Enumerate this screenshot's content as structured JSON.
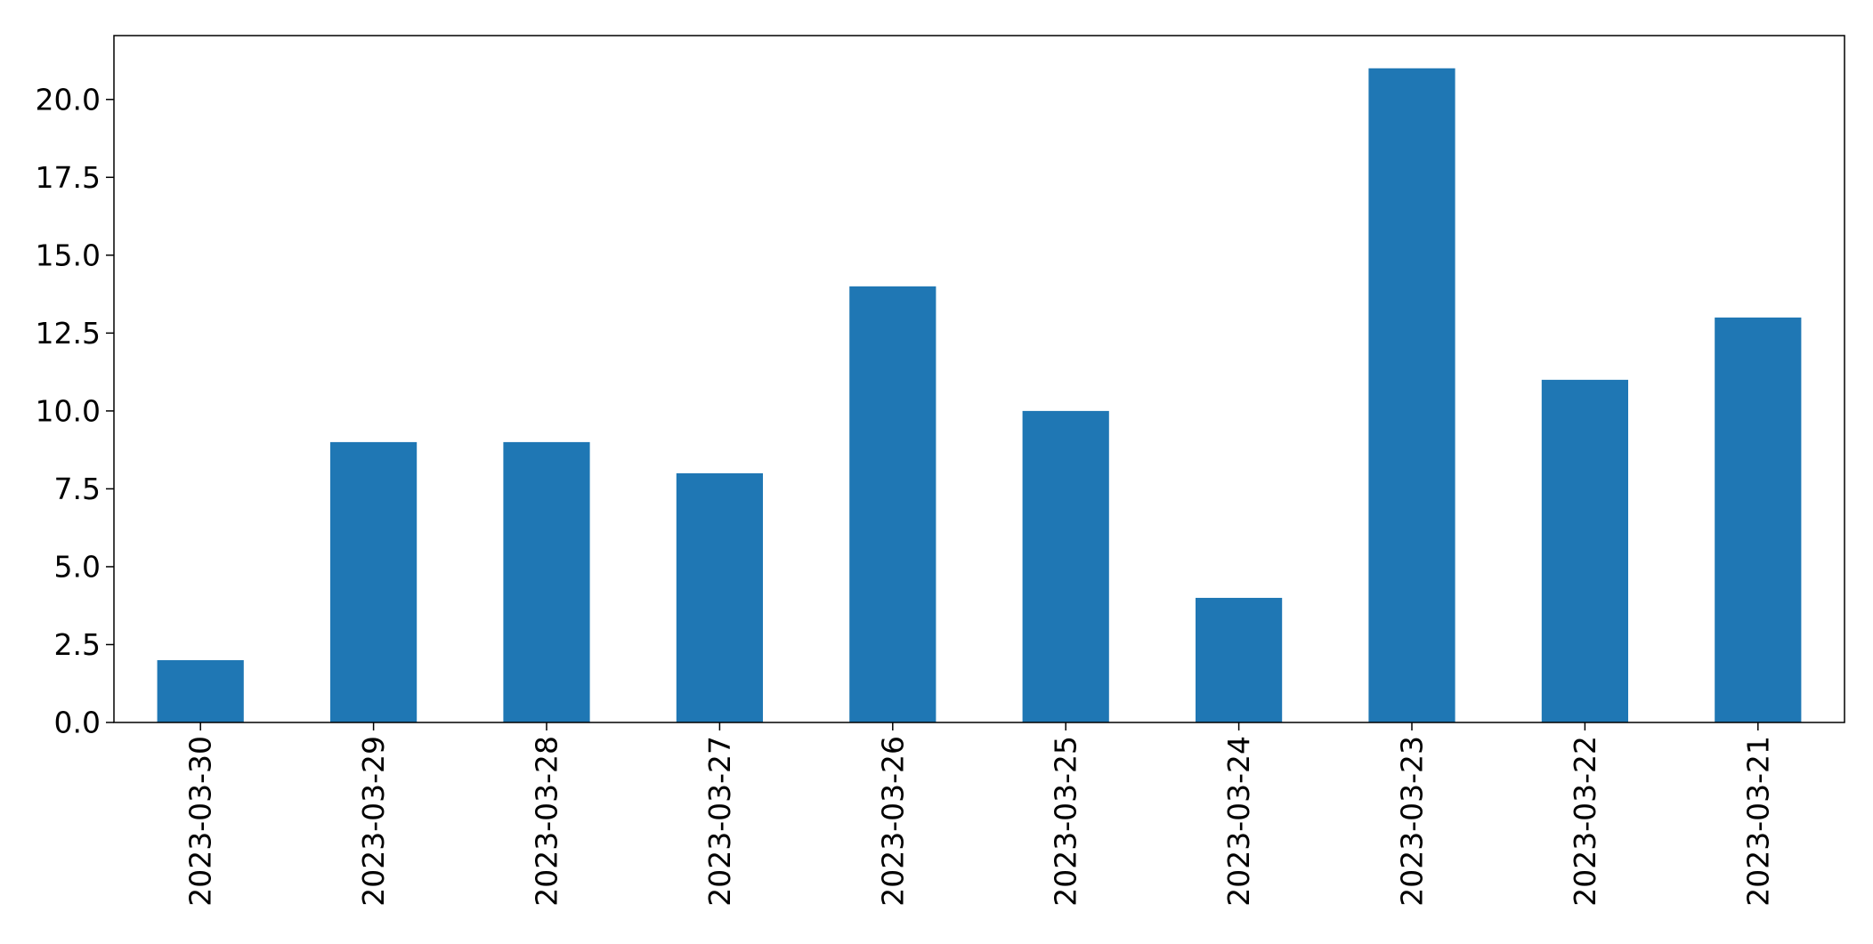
{
  "chart_data": {
    "type": "bar",
    "title": "",
    "xlabel": "",
    "ylabel": "",
    "categories": [
      "2023-03-30",
      "2023-03-29",
      "2023-03-28",
      "2023-03-27",
      "2023-03-26",
      "2023-03-25",
      "2023-03-24",
      "2023-03-23",
      "2023-03-22",
      "2023-03-21"
    ],
    "values": [
      2,
      9,
      9,
      8,
      14,
      10,
      4,
      21,
      11,
      13
    ],
    "ylim": [
      0,
      22.05
    ],
    "yticks": [
      0.0,
      2.5,
      5.0,
      7.5,
      10.0,
      12.5,
      15.0,
      17.5,
      20.0
    ],
    "ytick_labels": [
      "0.0",
      "2.5",
      "5.0",
      "7.5",
      "10.0",
      "12.5",
      "15.0",
      "17.5",
      "20.0"
    ],
    "x_tick_rotation": "vertical",
    "grid": false,
    "legend": "none",
    "bar_color": "#1f77b4"
  }
}
